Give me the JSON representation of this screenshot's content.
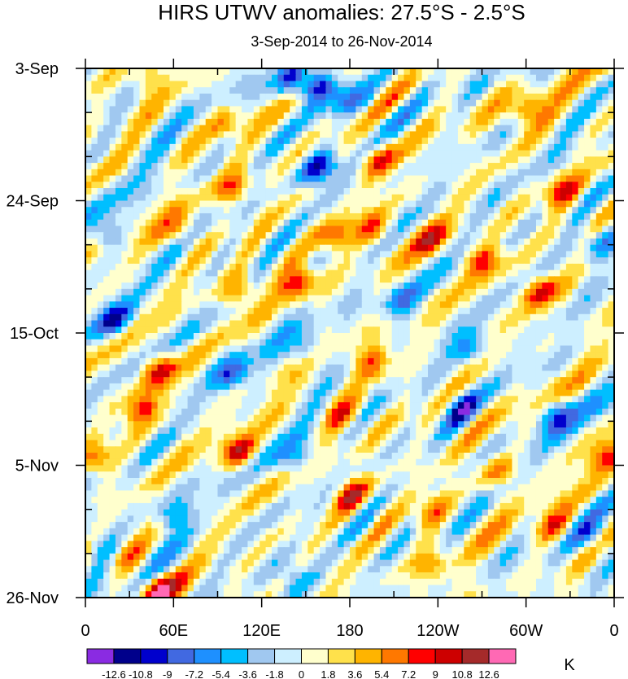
{
  "chart_data": {
    "type": "heatmap",
    "title": "HIRS UTWV anomalies: 27.5°S - 2.5°S",
    "subtitle": "3-Sep-2014 to 26-Nov-2014",
    "xlabel": "",
    "ylabel": "",
    "x_ticks": [
      "0",
      "60E",
      "120E",
      "180",
      "120W",
      "60W",
      "0"
    ],
    "x_tick_values_deg_east": [
      0,
      60,
      120,
      180,
      240,
      300,
      360
    ],
    "y_ticks": [
      "3-Sep",
      "24-Sep",
      "15-Oct",
      "5-Nov",
      "26-Nov"
    ],
    "y_tick_values_days": [
      0,
      21,
      42,
      63,
      84
    ],
    "xlim": [
      0,
      360
    ],
    "ylim": [
      0,
      84
    ],
    "colorbar": {
      "unit": "K",
      "levels": [
        "-12.6",
        "-10.8",
        "-9",
        "-7.2",
        "-5.4",
        "-3.6",
        "-1.8",
        "0",
        "1.8",
        "3.6",
        "5.4",
        "7.2",
        "9",
        "10.8",
        "12.6"
      ],
      "colors": [
        "#8a2be2",
        "#00008b",
        "#0000cd",
        "#4169e1",
        "#1e90ff",
        "#00bfff",
        "#a0c8f0",
        "#cdefff",
        "#ffffcd",
        "#ffe14b",
        "#ffb400",
        "#ff7800",
        "#ff0000",
        "#cd0000",
        "#a52a2a",
        "#ff69b4"
      ]
    },
    "features": [
      {
        "lon": 40,
        "day": 1.5,
        "value": 5.0
      },
      {
        "lon": 140,
        "day": 1.5,
        "value": -8.5
      },
      {
        "lon": 158,
        "day": 3.0,
        "value": -12.0
      },
      {
        "lon": 180,
        "day": 5.0,
        "value": -6.0
      },
      {
        "lon": 300,
        "day": 6.5,
        "value": 8.5
      },
      {
        "lon": 95,
        "day": 8.5,
        "value": 5.5
      },
      {
        "lon": 160,
        "day": 16.0,
        "value": -11.5
      },
      {
        "lon": 200,
        "day": 14.5,
        "value": 8.0
      },
      {
        "lon": 325,
        "day": 19.5,
        "value": 7.5
      },
      {
        "lon": 100,
        "day": 19.0,
        "value": 6.5
      },
      {
        "lon": 15,
        "day": 26.5,
        "value": -6.5
      },
      {
        "lon": 65,
        "day": 26.0,
        "value": 6.5
      },
      {
        "lon": 195,
        "day": 25.5,
        "value": 8.0
      },
      {
        "lon": 235,
        "day": 27.0,
        "value": 7.0
      },
      {
        "lon": 170,
        "day": 26.5,
        "value": 7.0
      },
      {
        "lon": 270,
        "day": 30.5,
        "value": 8.5
      },
      {
        "lon": 145,
        "day": 34.0,
        "value": 9.5
      },
      {
        "lon": 105,
        "day": 35.5,
        "value": 7.0
      },
      {
        "lon": 310,
        "day": 35.5,
        "value": 8.5
      },
      {
        "lon": 20,
        "day": 40.0,
        "value": -9.0
      },
      {
        "lon": 215,
        "day": 37.0,
        "value": -6.5
      },
      {
        "lon": 350,
        "day": 28.0,
        "value": -6.0
      },
      {
        "lon": 50,
        "day": 48.0,
        "value": 9.5
      },
      {
        "lon": 100,
        "day": 48.5,
        "value": -7.5
      },
      {
        "lon": 195,
        "day": 46.5,
        "value": 7.5
      },
      {
        "lon": 150,
        "day": 44.5,
        "value": -6.0
      },
      {
        "lon": 260,
        "day": 44.0,
        "value": -6.0
      },
      {
        "lon": 38,
        "day": 54.0,
        "value": 8.5
      },
      {
        "lon": 175,
        "day": 55.0,
        "value": 7.0
      },
      {
        "lon": 255,
        "day": 54.0,
        "value": -7.0
      },
      {
        "lon": 320,
        "day": 55.0,
        "value": -7.5
      },
      {
        "lon": 105,
        "day": 61.0,
        "value": 10.0
      },
      {
        "lon": 10,
        "day": 62.0,
        "value": 6.0
      },
      {
        "lon": 355,
        "day": 61.5,
        "value": 6.5
      },
      {
        "lon": 145,
        "day": 62.0,
        "value": -6.0
      },
      {
        "lon": 180,
        "day": 67.5,
        "value": 8.5
      },
      {
        "lon": 280,
        "day": 64.0,
        "value": 7.0
      },
      {
        "lon": 235,
        "day": 70.5,
        "value": 7.0
      },
      {
        "lon": 320,
        "day": 73.0,
        "value": 7.0
      },
      {
        "lon": 60,
        "day": 71.0,
        "value": -6.5
      },
      {
        "lon": 30,
        "day": 78.0,
        "value": 4.5
      },
      {
        "lon": 345,
        "day": 74.5,
        "value": -6.0
      },
      {
        "lon": 10,
        "day": 76.0,
        "value": -5.5
      },
      {
        "lon": 50,
        "day": 83.0,
        "value": 12.5
      },
      {
        "lon": 140,
        "day": 80.5,
        "value": -5.0
      },
      {
        "lon": 235,
        "day": 79.0,
        "value": 5.5
      }
    ]
  }
}
